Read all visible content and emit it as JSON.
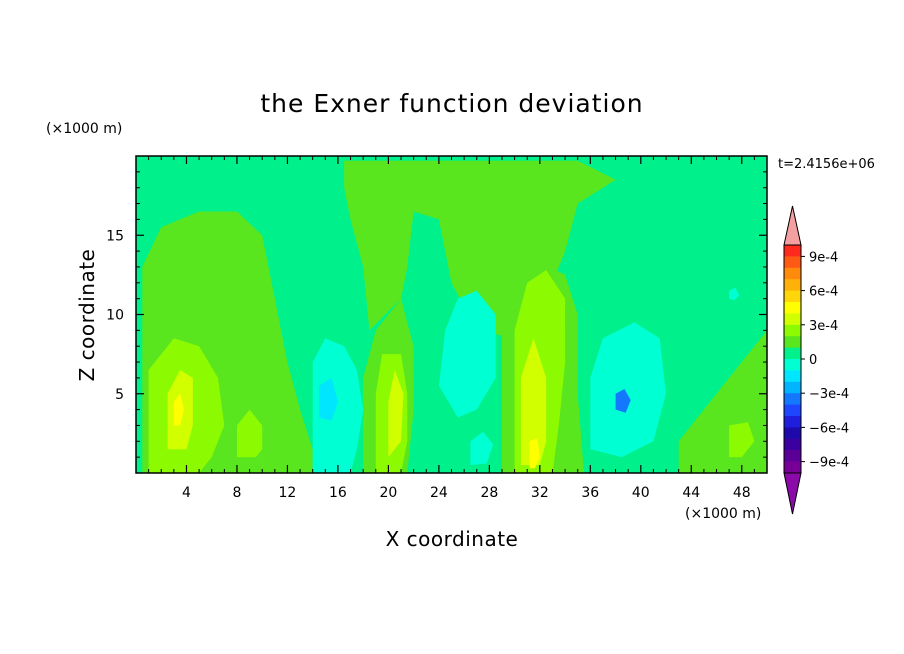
{
  "chart_data": {
    "type": "heatmap",
    "title": "the Exner function deviation",
    "xlabel": "X coordinate",
    "ylabel": "Z coordinate",
    "x_unit": "(×1000 m)",
    "y_unit": "(×1000 m)",
    "time_label": "t=2.4156e+06",
    "xlim": [
      0,
      50
    ],
    "ylim": [
      0,
      20
    ],
    "x_ticks": [
      "4",
      "8",
      "12",
      "16",
      "20",
      "24",
      "28",
      "32",
      "36",
      "40",
      "44",
      "48"
    ],
    "y_ticks": [
      "5",
      "10",
      "15"
    ],
    "colorbar": {
      "labels": [
        "9e-4",
        "6e-4",
        "3e-4",
        "0",
        "−3e-4",
        "−6e-4",
        "−9e-4"
      ],
      "levels": [
        0.001,
        0.0009,
        0.0008,
        0.0007,
        0.0006,
        0.0005,
        0.0004,
        0.0003,
        0.0002,
        0.0001,
        0,
        -0.0001,
        -0.0002,
        -0.0003,
        -0.0004,
        -0.0005,
        -0.0006,
        -0.0007,
        -0.0008,
        -0.0009,
        -0.001
      ],
      "colors": [
        "#ff2a1e",
        "#ff5a14",
        "#ff8a0c",
        "#ffb10a",
        "#ffd60a",
        "#ffff00",
        "#d2ff00",
        "#8cfa00",
        "#5ae61e",
        "#00f08c",
        "#00ffd2",
        "#00e6ff",
        "#00b4ff",
        "#1478ff",
        "#1e46ff",
        "#1e1edc",
        "#1e0aaa",
        "#3c00a0",
        "#5a0096",
        "#780096"
      ],
      "over_color": "#f5a0a0",
      "under_color": "#8c0aaa"
    },
    "grid": false,
    "legend": "colorbar on the right",
    "field_samples_note": "",
    "field": {
      "colors": {
        "neg2": "#00ffd2",
        "neg1": "#00f08c",
        "pos1": "#5ae61e",
        "pos2": "#8cfa00",
        "pos3": "#d2ff00",
        "pos4": "#ffff00",
        "neg3": "#00e6ff",
        "neg4": "#1478ff"
      },
      "regions": [
        {
          "level": "pos1",
          "pts": [
            [
              0.5,
              0
            ],
            [
              0.5,
              13
            ],
            [
              2,
              15.5
            ],
            [
              5,
              16.5
            ],
            [
              8,
              16.5
            ],
            [
              10,
              15
            ],
            [
              11,
              11
            ],
            [
              12,
              7
            ],
            [
              13,
              4
            ],
            [
              14,
              1.5
            ],
            [
              14,
              0
            ]
          ]
        },
        {
          "level": "pos1",
          "pts": [
            [
              16.5,
              19.7
            ],
            [
              35,
              19.7
            ],
            [
              38,
              18.5
            ],
            [
              36,
              17.5
            ],
            [
              35,
              17
            ],
            [
              34,
              14
            ],
            [
              32,
              10
            ],
            [
              30,
              8.5
            ],
            [
              27,
              9
            ],
            [
              25,
              12
            ],
            [
              24,
              16
            ],
            [
              22,
              16.5
            ],
            [
              21.5,
              13
            ],
            [
              21,
              11
            ],
            [
              18.5,
              9
            ],
            [
              18,
              13
            ],
            [
              17,
              16
            ],
            [
              16.5,
              18
            ]
          ]
        },
        {
          "level": "pos1",
          "pts": [
            [
              18,
              0
            ],
            [
              18,
              6
            ],
            [
              19,
              9
            ],
            [
              21,
              11
            ],
            [
              22,
              8
            ],
            [
              22,
              4
            ],
            [
              21.5,
              0
            ]
          ]
        },
        {
          "level": "pos1",
          "pts": [
            [
              29,
              0
            ],
            [
              29,
              10
            ],
            [
              30,
              13
            ],
            [
              32,
              13.3
            ],
            [
              34,
              12.5
            ],
            [
              35,
              10
            ],
            [
              35,
              5
            ],
            [
              35.5,
              0
            ]
          ]
        },
        {
          "level": "pos1",
          "pts": [
            [
              43,
              0
            ],
            [
              43,
              2
            ],
            [
              45,
              4
            ],
            [
              47,
              6
            ],
            [
              49,
              8
            ],
            [
              50,
              9
            ],
            [
              50,
              0
            ]
          ]
        },
        {
          "level": "pos2",
          "pts": [
            [
              1,
              0
            ],
            [
              1,
              6.5
            ],
            [
              3,
              8.5
            ],
            [
              5,
              8
            ],
            [
              6.5,
              6
            ],
            [
              7,
              3
            ],
            [
              6,
              1
            ],
            [
              5,
              0
            ]
          ]
        },
        {
          "level": "pos2",
          "pts": [
            [
              19,
              0
            ],
            [
              19,
              5
            ],
            [
              19.5,
              7.5
            ],
            [
              21,
              7.5
            ],
            [
              21.5,
              5
            ],
            [
              21.5,
              2
            ],
            [
              21,
              0
            ]
          ]
        },
        {
          "level": "pos2",
          "pts": [
            [
              30,
              0
            ],
            [
              30,
              9
            ],
            [
              31,
              12
            ],
            [
              32.5,
              12.8
            ],
            [
              34,
              11
            ],
            [
              34,
              7
            ],
            [
              33.5,
              3
            ],
            [
              33,
              0
            ]
          ]
        },
        {
          "level": "pos2",
          "pts": [
            [
              8,
              1
            ],
            [
              8,
              3
            ],
            [
              9,
              4
            ],
            [
              10,
              3
            ],
            [
              10,
              1.5
            ],
            [
              9.5,
              1
            ]
          ]
        },
        {
          "level": "pos2",
          "pts": [
            [
              47,
              1
            ],
            [
              47,
              3
            ],
            [
              48.5,
              3.2
            ],
            [
              49,
              2
            ],
            [
              48,
              1
            ]
          ]
        },
        {
          "level": "pos3",
          "pts": [
            [
              2.5,
              1.5
            ],
            [
              2.5,
              5
            ],
            [
              3.5,
              6.5
            ],
            [
              4.5,
              6
            ],
            [
              4.5,
              3
            ],
            [
              4,
              1.5
            ]
          ]
        },
        {
          "level": "pos3",
          "pts": [
            [
              20,
              1
            ],
            [
              20,
              4.5
            ],
            [
              20.5,
              6.5
            ],
            [
              21.2,
              5
            ],
            [
              21,
              2
            ]
          ]
        },
        {
          "level": "pos3",
          "pts": [
            [
              30.5,
              0.5
            ],
            [
              30.5,
              6
            ],
            [
              31.5,
              8.5
            ],
            [
              32.5,
              6
            ],
            [
              32.5,
              2
            ],
            [
              32,
              0.5
            ]
          ]
        },
        {
          "level": "pos4",
          "pts": [
            [
              3,
              3
            ],
            [
              3,
              4.5
            ],
            [
              3.5,
              5
            ],
            [
              3.8,
              4
            ],
            [
              3.5,
              3
            ]
          ]
        },
        {
          "level": "pos4",
          "pts": [
            [
              31.2,
              0.3
            ],
            [
              31.2,
              2
            ],
            [
              31.8,
              2.2
            ],
            [
              32,
              1
            ],
            [
              31.6,
              0.3
            ]
          ]
        },
        {
          "level": "neg2",
          "pts": [
            [
              14,
              0
            ],
            [
              14,
              7
            ],
            [
              15,
              8.5
            ],
            [
              16.5,
              8
            ],
            [
              17.5,
              6.5
            ],
            [
              18,
              4
            ],
            [
              17.5,
              1.5
            ],
            [
              17,
              0
            ]
          ]
        },
        {
          "level": "neg2",
          "pts": [
            [
              24,
              5.5
            ],
            [
              24.5,
              9
            ],
            [
              25.5,
              11
            ],
            [
              27,
              11.5
            ],
            [
              28.5,
              10
            ],
            [
              28.5,
              6
            ],
            [
              27,
              4
            ],
            [
              25.5,
              3.5
            ]
          ]
        },
        {
          "level": "neg2",
          "pts": [
            [
              36,
              1.5
            ],
            [
              36,
              6
            ],
            [
              37,
              8.5
            ],
            [
              39.5,
              9.5
            ],
            [
              41.5,
              8.5
            ],
            [
              42,
              5
            ],
            [
              41,
              2
            ],
            [
              38.5,
              1
            ]
          ]
        },
        {
          "level": "neg2",
          "pts": [
            [
              26.5,
              0.5
            ],
            [
              26.5,
              2
            ],
            [
              27.5,
              2.6
            ],
            [
              28.3,
              1.8
            ],
            [
              27.8,
              0.6
            ]
          ]
        },
        {
          "level": "neg2",
          "pts": [
            [
              47,
              11
            ],
            [
              47,
              11.5
            ],
            [
              47.5,
              11.7
            ],
            [
              47.8,
              11.2
            ],
            [
              47.4,
              10.9
            ]
          ]
        },
        {
          "level": "neg3",
          "pts": [
            [
              14.5,
              3.5
            ],
            [
              14.5,
              5.5
            ],
            [
              15.5,
              6
            ],
            [
              16,
              4.5
            ],
            [
              15.5,
              3.3
            ]
          ]
        },
        {
          "level": "neg4",
          "pts": [
            [
              38,
              4
            ],
            [
              38,
              5
            ],
            [
              38.7,
              5.3
            ],
            [
              39.2,
              4.6
            ],
            [
              38.8,
              3.8
            ]
          ]
        }
      ]
    }
  }
}
